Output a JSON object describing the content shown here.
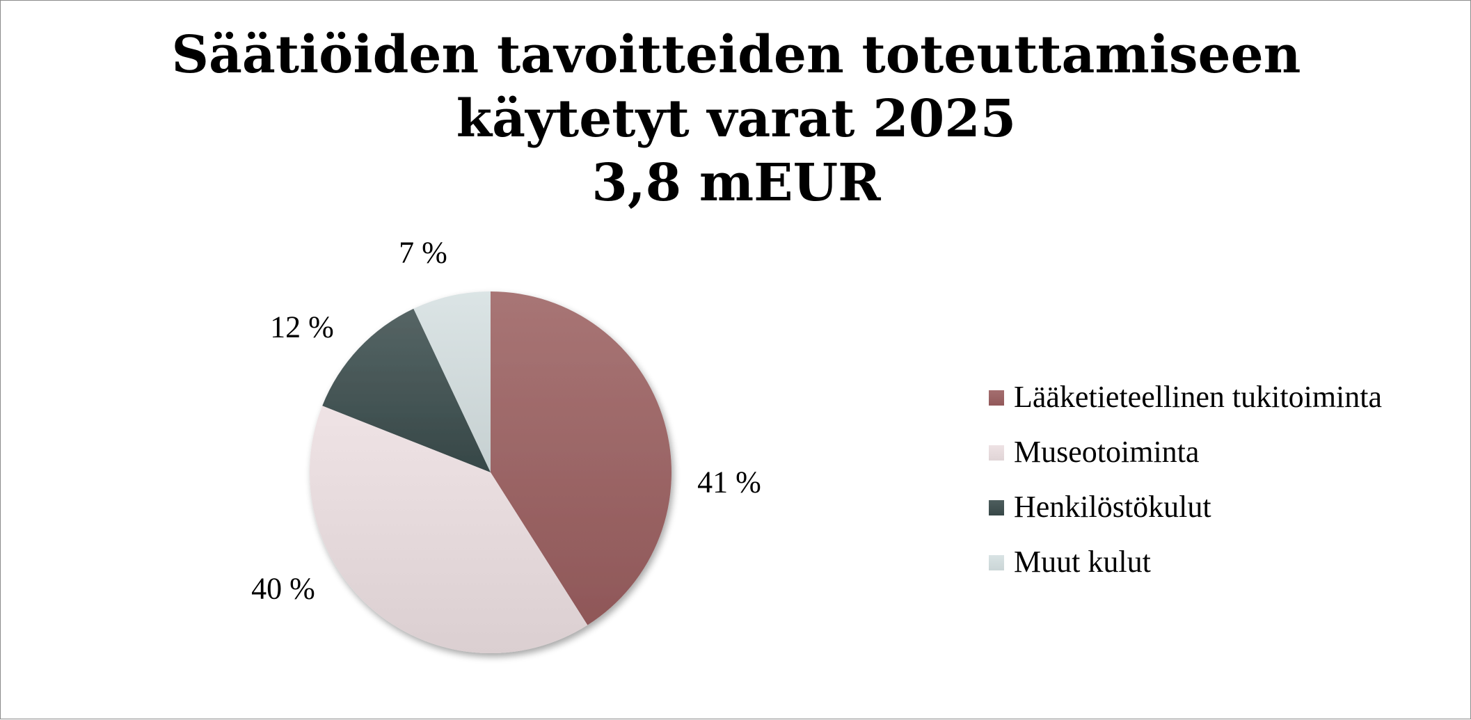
{
  "chart_data": {
    "type": "pie",
    "title": [
      "Säätiöiden tavoitteiden toteuttamiseen",
      "käytetyt varat 2025",
      "3,8 mEUR"
    ],
    "categories": [
      "Lääketieteellinen tukitoiminta",
      "Museotoiminta",
      "Henkilöstökulut",
      "Muut kulut"
    ],
    "values": [
      41,
      40,
      12,
      7
    ],
    "value_labels": [
      "41 %",
      "40 %",
      "12 %",
      "7 %"
    ],
    "colors": [
      "#9a5e5f",
      "#ecdfe1",
      "#3a4c4c",
      "#d5e0e1"
    ],
    "legend_placement": "right"
  }
}
